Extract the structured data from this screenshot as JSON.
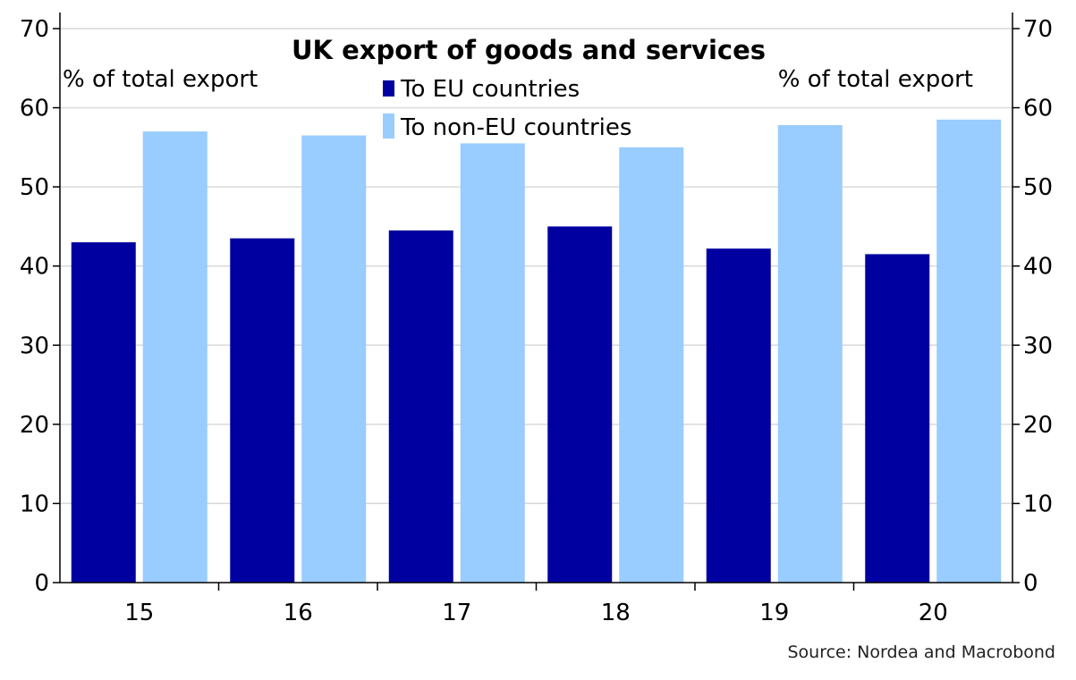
{
  "chart_data": {
    "type": "bar",
    "title": "UK export of goods and services",
    "ylabel_left": "% of total export",
    "ylabel_right": "% of total export",
    "source": "Source: Nordea and Macrobond",
    "categories": [
      "15",
      "16",
      "17",
      "18",
      "19",
      "20"
    ],
    "ylim": [
      0,
      70
    ],
    "yticks": [
      "0",
      "10",
      "20",
      "30",
      "40",
      "50",
      "60",
      "70"
    ],
    "grid": true,
    "legend_position": "top-center",
    "series": [
      {
        "name": "To EU countries",
        "color": "#0000a0",
        "values": [
          43.0,
          43.5,
          44.5,
          45.0,
          42.2,
          41.5
        ]
      },
      {
        "name": "To non-EU countries",
        "color": "#99ccff",
        "values": [
          57.0,
          56.5,
          55.5,
          55.0,
          57.8,
          58.5
        ]
      }
    ]
  }
}
